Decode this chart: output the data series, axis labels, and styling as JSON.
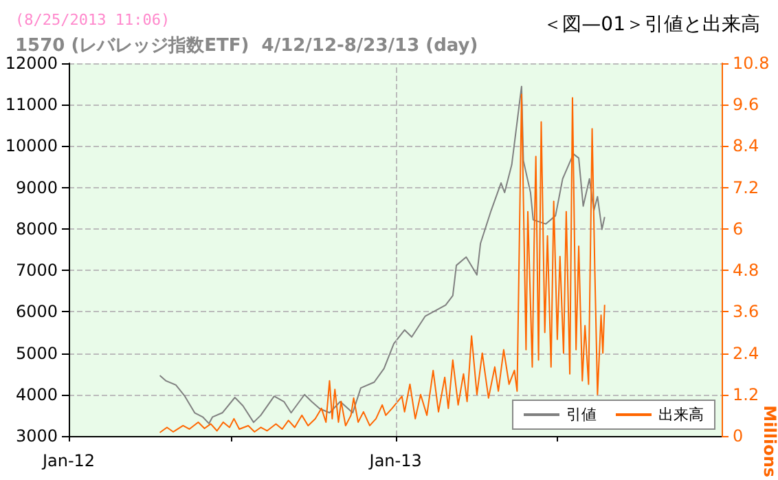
{
  "chart_data": {
    "type": "line",
    "title": "＜図—01＞引値と出来高",
    "subtitle": "1570 (レバレッジ指数ETF)  4/12/12-8/23/13 (day)",
    "annotations": [
      "(8/25/2013 11:06)"
    ],
    "y2label": "Millions",
    "xlim": [
      "2012-01-01",
      "2014-01-01"
    ],
    "xticks": [
      {
        "value": "2012-01-01",
        "label": "Jan-12"
      },
      {
        "value": "2012-07-01",
        "label": null
      },
      {
        "value": "2013-01-01",
        "label": "Jan-13"
      },
      {
        "value": "2013-07-01",
        "label": null
      }
    ],
    "ylim": [
      3000,
      12000
    ],
    "yticks": [
      3000,
      4000,
      5000,
      6000,
      7000,
      8000,
      9000,
      10000,
      11000,
      12000
    ],
    "y2lim": [
      0,
      10.8
    ],
    "y2ticks": [
      0,
      1.2,
      2.4,
      3.6,
      4.8,
      6,
      7.2,
      8.4,
      9.6,
      10.8
    ],
    "grid": true,
    "legend": "bottom right",
    "marker": "none",
    "line_style": "solid",
    "series": [
      {
        "name": "引値",
        "color": "#808080",
        "x": [
          "2012-04-12",
          "2012-04-19",
          "2012-04-30",
          "2012-05-10",
          "2012-05-21",
          "2012-05-30",
          "2012-06-06",
          "2012-06-10",
          "2012-06-21",
          "2012-07-05",
          "2012-07-14",
          "2012-07-26",
          "2012-08-03",
          "2012-08-18",
          "2012-08-29",
          "2012-09-06",
          "2012-09-21",
          "2012-09-29",
          "2012-10-08",
          "2012-10-19",
          "2012-10-31",
          "2012-11-14",
          "2012-11-23",
          "2012-12-08",
          "2012-12-19",
          "2012-12-30",
          "2013-01-11",
          "2013-01-19",
          "2013-02-03",
          "2013-02-26",
          "2013-03-06",
          "2013-03-10",
          "2013-03-21",
          "2013-04-02",
          "2013-04-06",
          "2013-04-18",
          "2013-04-29",
          "2013-05-03",
          "2013-05-11",
          "2013-05-22",
          "2013-05-24",
          "2013-06-01",
          "2013-06-04",
          "2013-06-18",
          "2013-06-29",
          "2013-07-07",
          "2013-07-19",
          "2013-07-25",
          "2013-07-30",
          "2013-08-06",
          "2013-08-11",
          "2013-08-15",
          "2013-08-20",
          "2013-08-23"
        ],
        "values": [
          4460,
          4330,
          4230,
          3960,
          3560,
          3460,
          3300,
          3460,
          3560,
          3930,
          3730,
          3330,
          3500,
          3960,
          3830,
          3560,
          4000,
          3830,
          3660,
          3560,
          3830,
          3560,
          4160,
          4300,
          4630,
          5230,
          5560,
          5390,
          5890,
          6160,
          6390,
          7120,
          7320,
          6890,
          7650,
          8450,
          9110,
          8880,
          9550,
          11440,
          9650,
          8880,
          8220,
          8120,
          8320,
          9210,
          9810,
          9710,
          8550,
          9210,
          8450,
          8780,
          7990,
          8290
        ]
      },
      {
        "name": "出来高",
        "color": "#ff6600",
        "axis": "y2",
        "x": [
          "2012-04-12",
          "2012-04-20",
          "2012-04-27",
          "2012-05-08",
          "2012-05-15",
          "2012-05-25",
          "2012-06-01",
          "2012-06-08",
          "2012-06-15",
          "2012-06-22",
          "2012-06-29",
          "2012-07-04",
          "2012-07-10",
          "2012-07-20",
          "2012-07-27",
          "2012-08-03",
          "2012-08-10",
          "2012-08-20",
          "2012-08-27",
          "2012-09-03",
          "2012-09-10",
          "2012-09-18",
          "2012-09-25",
          "2012-10-03",
          "2012-10-10",
          "2012-10-15",
          "2012-10-19",
          "2012-10-22",
          "2012-10-25",
          "2012-10-29",
          "2012-11-01",
          "2012-11-06",
          "2012-11-12",
          "2012-11-15",
          "2012-11-20",
          "2012-11-26",
          "2012-12-03",
          "2012-12-10",
          "2012-12-17",
          "2012-12-21",
          "2012-12-28",
          "2013-01-08",
          "2013-01-11",
          "2013-01-17",
          "2013-01-23",
          "2013-01-29",
          "2013-02-05",
          "2013-02-12",
          "2013-02-18",
          "2013-02-25",
          "2013-03-01",
          "2013-03-06",
          "2013-03-12",
          "2013-03-18",
          "2013-03-22",
          "2013-03-27",
          "2013-04-02",
          "2013-04-08",
          "2013-04-15",
          "2013-04-22",
          "2013-04-26",
          "2013-05-02",
          "2013-05-08",
          "2013-05-14",
          "2013-05-17",
          "2013-05-22",
          "2013-05-27",
          "2013-05-29",
          "2013-06-03",
          "2013-06-05",
          "2013-06-07",
          "2013-06-10",
          "2013-06-13",
          "2013-06-17",
          "2013-06-20",
          "2013-06-24",
          "2013-06-27",
          "2013-07-01",
          "2013-07-04",
          "2013-07-08",
          "2013-07-11",
          "2013-07-15",
          "2013-07-18",
          "2013-07-22",
          "2013-07-25",
          "2013-07-29",
          "2013-08-01",
          "2013-08-05",
          "2013-08-09",
          "2013-08-12",
          "2013-08-15",
          "2013-08-19",
          "2013-08-21",
          "2013-08-23"
        ],
        "values": [
          0.1,
          0.25,
          0.12,
          0.3,
          0.2,
          0.4,
          0.22,
          0.35,
          0.15,
          0.4,
          0.25,
          0.5,
          0.2,
          0.3,
          0.12,
          0.25,
          0.15,
          0.35,
          0.2,
          0.45,
          0.25,
          0.6,
          0.3,
          0.5,
          0.8,
          0.4,
          1.6,
          0.5,
          1.35,
          0.4,
          1.0,
          0.3,
          0.6,
          1.1,
          0.4,
          0.7,
          0.3,
          0.5,
          0.9,
          0.6,
          0.8,
          1.15,
          0.7,
          1.5,
          0.5,
          1.2,
          0.6,
          1.9,
          0.7,
          1.7,
          0.8,
          2.2,
          0.9,
          1.8,
          1.0,
          2.9,
          1.2,
          2.4,
          1.1,
          2.0,
          1.3,
          2.5,
          1.5,
          1.9,
          1.3,
          9.9,
          2.5,
          6.5,
          2.0,
          5.5,
          8.1,
          2.2,
          9.1,
          3.0,
          5.8,
          2.0,
          6.8,
          2.8,
          5.2,
          2.4,
          6.5,
          1.8,
          9.8,
          2.5,
          5.5,
          1.6,
          3.2,
          1.5,
          8.9,
          4.8,
          1.2,
          3.5,
          2.4,
          3.8
        ]
      }
    ]
  }
}
